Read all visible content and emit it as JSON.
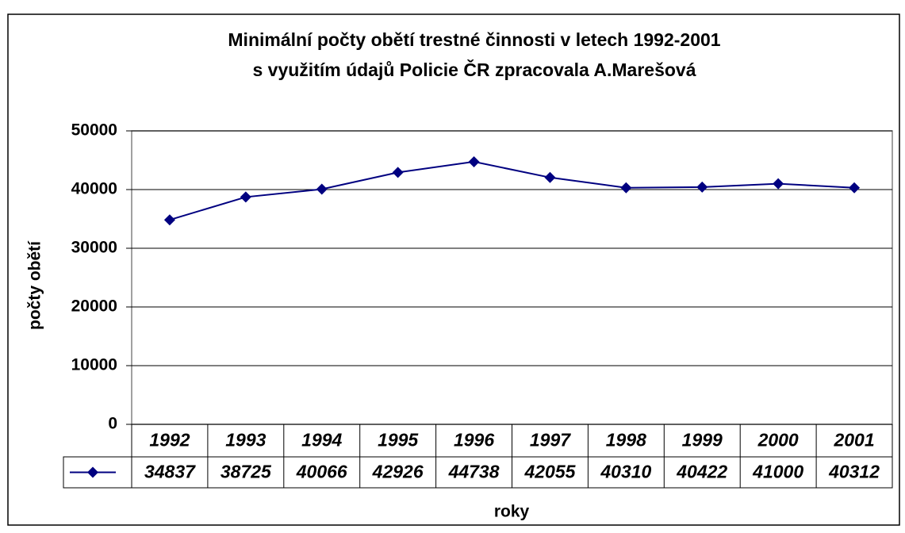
{
  "chart_data": {
    "type": "line",
    "title": [
      "Minimální počty obětí trestné činnosti v letech 1992-2001",
      "s využitím  údajů Policie ČR zpracovala A.Marešová"
    ],
    "y_label": "počty obětí",
    "x_label": "roky",
    "categories": [
      "1992",
      "1993",
      "1994",
      "1995",
      "1996",
      "1997",
      "1998",
      "1999",
      "2000",
      "2001"
    ],
    "values": [
      34837,
      38725,
      40066,
      42926,
      44738,
      42055,
      40310,
      40422,
      41000,
      40312
    ],
    "color": "#000080",
    "ylim": [
      0,
      50000
    ],
    "yticks": [
      0,
      10000,
      20000,
      30000,
      40000,
      50000
    ],
    "grid": true,
    "data_table": true
  }
}
